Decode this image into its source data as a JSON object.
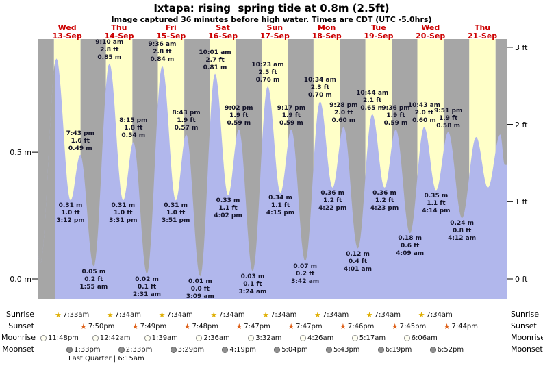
{
  "header": {
    "title": "Ixtapa: rising  spring tide at 0.8m (2.5ft)",
    "subtitle": "Image captured 36 minutes before high water. Times are CDT (UTC -5.0hrs)"
  },
  "days": [
    {
      "weekday": "Wed",
      "date": "13-Sep"
    },
    {
      "weekday": "Thu",
      "date": "14-Sep"
    },
    {
      "weekday": "Fri",
      "date": "15-Sep"
    },
    {
      "weekday": "Sat",
      "date": "16-Sep"
    },
    {
      "weekday": "Sun",
      "date": "17-Sep"
    },
    {
      "weekday": "Mon",
      "date": "18-Sep"
    },
    {
      "weekday": "Tue",
      "date": "19-Sep"
    },
    {
      "weekday": "Wed",
      "date": "20-Sep"
    },
    {
      "weekday": "Thu",
      "date": "21-Sep"
    }
  ],
  "axes": {
    "left_m": [
      "0.5 m",
      "0.0 m"
    ],
    "right_ft": [
      "3 ft",
      "2 ft",
      "1 ft",
      "0 ft"
    ]
  },
  "chart_data": {
    "type": "area",
    "title": "Ixtapa: rising  spring tide at 0.8m (2.5ft)",
    "series_name": "tide height",
    "units": {
      "primary": "m",
      "secondary": "ft"
    },
    "ylim_m": [
      -0.08,
      0.95
    ],
    "x_range": "13-Sep 00:00 through late 21-Sep",
    "legend": "none",
    "grid": "off",
    "now_marker": {
      "date": "13-Sep",
      "time": "8:04 am",
      "note": "36 minutes before high water",
      "estimated": true
    },
    "extremes": [
      {
        "date": "13-Sep",
        "time": "12:00 am",
        "m": 0.1,
        "kind": "edge",
        "labeled": false,
        "estimated": true
      },
      {
        "date": "13-Sep",
        "time": "1:10 am",
        "m": 0.06,
        "kind": "low",
        "labeled": false,
        "estimated": true
      },
      {
        "date": "13-Sep",
        "time": "8:40 am",
        "m": 0.87,
        "kind": "high",
        "labeled": false,
        "estimated": true
      },
      {
        "date": "13-Sep",
        "time": "3:12 pm",
        "m": 0.31,
        "ft": 1.0,
        "kind": "low",
        "labeled": true
      },
      {
        "date": "13-Sep",
        "time": "7:43 pm",
        "m": 0.49,
        "ft": 1.6,
        "kind": "high",
        "labeled": true
      },
      {
        "date": "14-Sep",
        "time": "1:55 am",
        "m": 0.05,
        "ft": 0.2,
        "kind": "low",
        "labeled": true
      },
      {
        "date": "14-Sep",
        "time": "9:10 am",
        "m": 0.85,
        "ft": 2.8,
        "kind": "high",
        "labeled": true
      },
      {
        "date": "14-Sep",
        "time": "3:31 pm",
        "m": 0.31,
        "ft": 1.0,
        "kind": "low",
        "labeled": true
      },
      {
        "date": "14-Sep",
        "time": "8:15 pm",
        "m": 0.54,
        "ft": 1.8,
        "kind": "high",
        "labeled": true
      },
      {
        "date": "15-Sep",
        "time": "2:31 am",
        "m": 0.02,
        "ft": 0.1,
        "kind": "low",
        "labeled": true
      },
      {
        "date": "15-Sep",
        "time": "9:36 am",
        "m": 0.84,
        "ft": 2.8,
        "kind": "high",
        "labeled": true
      },
      {
        "date": "15-Sep",
        "time": "3:51 pm",
        "m": 0.31,
        "ft": 1.0,
        "kind": "low",
        "labeled": true
      },
      {
        "date": "15-Sep",
        "time": "8:43 pm",
        "m": 0.57,
        "ft": 1.9,
        "kind": "high",
        "labeled": true
      },
      {
        "date": "16-Sep",
        "time": "3:09 am",
        "m": 0.01,
        "ft": 0.0,
        "kind": "low",
        "labeled": true
      },
      {
        "date": "16-Sep",
        "time": "10:01 am",
        "m": 0.81,
        "ft": 2.7,
        "kind": "high",
        "labeled": true
      },
      {
        "date": "16-Sep",
        "time": "4:02 pm",
        "m": 0.33,
        "ft": 1.1,
        "kind": "low",
        "labeled": true
      },
      {
        "date": "16-Sep",
        "time": "9:02 pm",
        "m": 0.59,
        "ft": 1.9,
        "kind": "high",
        "labeled": true
      },
      {
        "date": "17-Sep",
        "time": "3:24 am",
        "m": 0.03,
        "ft": 0.1,
        "kind": "low",
        "labeled": true
      },
      {
        "date": "17-Sep",
        "time": "10:23 am",
        "m": 0.76,
        "ft": 2.5,
        "kind": "high",
        "labeled": true
      },
      {
        "date": "17-Sep",
        "time": "4:15 pm",
        "m": 0.34,
        "ft": 1.1,
        "kind": "low",
        "labeled": true
      },
      {
        "date": "17-Sep",
        "time": "9:17 pm",
        "m": 0.59,
        "ft": 1.9,
        "kind": "high",
        "labeled": true
      },
      {
        "date": "18-Sep",
        "time": "3:42 am",
        "m": 0.07,
        "ft": 0.2,
        "kind": "low",
        "labeled": true
      },
      {
        "date": "18-Sep",
        "time": "10:34 am",
        "m": 0.7,
        "ft": 2.3,
        "kind": "high",
        "labeled": true
      },
      {
        "date": "18-Sep",
        "time": "4:22 pm",
        "m": 0.36,
        "ft": 1.2,
        "kind": "low",
        "labeled": true
      },
      {
        "date": "18-Sep",
        "time": "9:28 pm",
        "m": 0.6,
        "ft": 2.0,
        "kind": "high",
        "labeled": true
      },
      {
        "date": "19-Sep",
        "time": "4:01 am",
        "m": 0.12,
        "ft": 0.4,
        "kind": "low",
        "labeled": true
      },
      {
        "date": "19-Sep",
        "time": "10:44 am",
        "m": 0.65,
        "ft": 2.1,
        "kind": "high",
        "labeled": true
      },
      {
        "date": "19-Sep",
        "time": "4:23 pm",
        "m": 0.36,
        "ft": 1.2,
        "kind": "low",
        "labeled": true
      },
      {
        "date": "19-Sep",
        "time": "9:36 pm",
        "m": 0.59,
        "ft": 1.9,
        "kind": "high",
        "labeled": true
      },
      {
        "date": "20-Sep",
        "time": "4:09 am",
        "m": 0.18,
        "ft": 0.6,
        "kind": "low",
        "labeled": true
      },
      {
        "date": "20-Sep",
        "time": "10:43 am",
        "m": 0.6,
        "ft": 2.0,
        "kind": "high",
        "labeled": true
      },
      {
        "date": "20-Sep",
        "time": "4:14 pm",
        "m": 0.35,
        "ft": 1.1,
        "kind": "low",
        "labeled": true
      },
      {
        "date": "20-Sep",
        "time": "9:51 pm",
        "m": 0.58,
        "ft": 1.9,
        "kind": "high",
        "labeled": true
      },
      {
        "date": "21-Sep",
        "time": "4:12 am",
        "m": 0.24,
        "ft": 0.8,
        "kind": "low",
        "labeled": true
      },
      {
        "date": "21-Sep",
        "time": "10:45 am",
        "m": 0.56,
        "kind": "high",
        "labeled": false,
        "estimated": true
      },
      {
        "date": "21-Sep",
        "time": "4:10 pm",
        "m": 0.36,
        "kind": "low",
        "labeled": false,
        "estimated": true
      },
      {
        "date": "21-Sep",
        "time": "9:55 pm",
        "m": 0.57,
        "kind": "high",
        "labeled": false,
        "estimated": true
      },
      {
        "date": "21-Sep",
        "time": "11:59 pm",
        "m": 0.45,
        "kind": "edge",
        "labeled": false,
        "estimated": true
      }
    ]
  },
  "astro": {
    "rows": [
      {
        "label": "Sunrise",
        "icon": "sunrise-star-icon",
        "times": [
          "7:33am",
          "7:34am",
          "7:34am",
          "7:34am",
          "7:34am",
          "7:34am",
          "7:34am",
          "7:34am"
        ]
      },
      {
        "label": "Sunset",
        "icon": "sunset-star-icon",
        "times": [
          "7:50pm",
          "7:49pm",
          "7:48pm",
          "7:47pm",
          "7:47pm",
          "7:46pm",
          "7:45pm",
          "7:44pm"
        ]
      },
      {
        "label": "Moonrise",
        "icon": "moonrise-circle-icon",
        "times": [
          "11:48pm",
          "12:42am",
          "1:39am",
          "2:36am",
          "3:32am",
          "4:26am",
          "5:17am",
          "6:06am"
        ]
      },
      {
        "label": "Moonset",
        "icon": "moonset-circle-icon",
        "times": [
          "1:33pm",
          "2:33pm",
          "3:29pm",
          "4:19pm",
          "5:04pm",
          "5:43pm",
          "6:19pm",
          "6:52pm"
        ]
      }
    ],
    "phase_note": "Last Quarter | 6:15am"
  },
  "colors": {
    "day_stripe": "#ffffc8",
    "night_stripe": "#a6a6a6",
    "tide_fill": "#b1b7ec",
    "past_tide_fill": "#a6a6a6",
    "day_label": "#cc0000",
    "annotation_text": "#14142a",
    "sunrise_star": "#dfae00",
    "sunset_star": "#de6018",
    "moonrise_fill": "#fffff2",
    "moonrise_border": "#8a8a8a",
    "moonset_fill": "#8f8f8f",
    "moonset_border": "#5f5f5f"
  }
}
